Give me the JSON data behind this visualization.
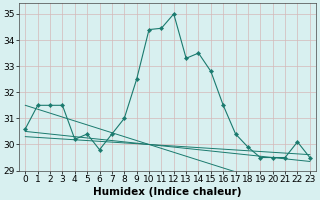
{
  "xlabel": "Humidex (Indice chaleur)",
  "x": [
    0,
    1,
    2,
    3,
    4,
    5,
    6,
    7,
    8,
    9,
    10,
    11,
    12,
    13,
    14,
    15,
    16,
    17,
    18,
    19,
    20,
    21,
    22,
    23
  ],
  "y_main": [
    30.6,
    31.5,
    31.5,
    31.5,
    30.2,
    30.4,
    29.8,
    30.4,
    31.0,
    32.5,
    34.4,
    34.45,
    35.0,
    33.3,
    33.5,
    32.8,
    31.5,
    30.4,
    29.9,
    29.5,
    29.5,
    29.5,
    30.1,
    29.5
  ],
  "y_trend1": [
    31.5,
    31.35,
    31.2,
    31.05,
    30.9,
    30.75,
    30.6,
    30.45,
    30.3,
    30.15,
    30.0,
    29.85,
    29.7,
    29.55,
    29.4,
    29.25,
    29.1,
    28.95,
    28.8,
    28.65,
    28.5,
    28.35,
    28.2,
    28.05
  ],
  "y_trend2": [
    30.5,
    30.45,
    30.4,
    30.35,
    30.3,
    30.25,
    30.2,
    30.15,
    30.1,
    30.05,
    30.0,
    29.95,
    29.9,
    29.85,
    29.8,
    29.75,
    29.7,
    29.65,
    29.6,
    29.55,
    29.5,
    29.45,
    29.4,
    29.35
  ],
  "y_trend3": [
    30.3,
    30.27,
    30.24,
    30.21,
    30.18,
    30.15,
    30.12,
    30.09,
    30.06,
    30.03,
    30.0,
    29.97,
    29.94,
    29.91,
    29.88,
    29.85,
    29.82,
    29.79,
    29.76,
    29.73,
    29.7,
    29.67,
    29.64,
    29.61
  ],
  "line_color": "#1a7a6e",
  "bg_color": "#d8f0f0",
  "grid_color_major": "#c8dede",
  "grid_color_minor": "#dce8e8",
  "ylim": [
    29,
    35.4
  ],
  "yticks": [
    29,
    30,
    31,
    32,
    33,
    34,
    35
  ],
  "xticks": [
    0,
    1,
    2,
    3,
    4,
    5,
    6,
    7,
    8,
    9,
    10,
    11,
    12,
    13,
    14,
    15,
    16,
    17,
    18,
    19,
    20,
    21,
    22,
    23
  ],
  "tick_fontsize": 6.5,
  "xlabel_fontsize": 7.5
}
